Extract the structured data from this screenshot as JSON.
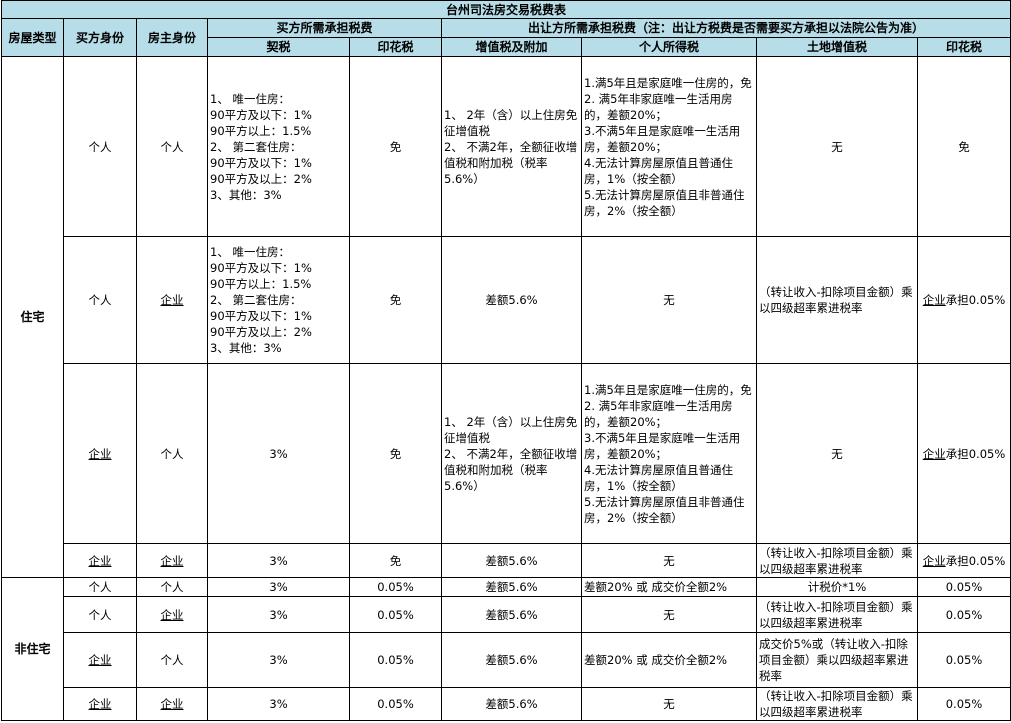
{
  "title": "台州司法房交易税费表",
  "headers": {
    "house_type": "房屋类型",
    "buyer": "买方身份",
    "owner": "房主身份",
    "buyer_taxes": "买方所需承担税费",
    "seller_taxes": "出让方所需承担税费（注：出让方税费是否需要买方承担以法院公告为准）",
    "deed_tax": "契税",
    "stamp_tax_buyer": "印花税",
    "vat": "增值税及附加",
    "income_tax": "个人所得税",
    "land_vat": "土地增值税",
    "stamp_tax_seller": "印花税"
  },
  "groups": [
    {
      "type": "住宅",
      "rows": [
        {
          "buyer": "个人",
          "owner": "个人",
          "deed": "1、 唯一住房：\n90平方及以下：1%\n90平方以上：1.5%\n2、 第二套住房：\n90平方及以下：1%\n90平方及以上：2%\n3、其他：3%",
          "stamp_b": "免",
          "vat": "1、 2年（含）以上住房免征增值税\n2、 不满2年，全额征收增值税和附加税（税率5.6%）",
          "income": "1.满5年且是家庭唯一住房的，免\n2. 满5年非家庭唯一生活用房的，差额20%；\n3.不满5年且是家庭唯一生活用房，差额20%；\n4.无法计算房屋原值且普通住房，1%（按全额）\n5.无法计算房屋原值且非普通住房，2%（按全额）",
          "land": "无",
          "stamp_s": "免"
        },
        {
          "buyer": "个人",
          "owner": "企业",
          "deed": "1、 唯一住房：\n90平方及以下：1%\n90平方以上：1.5%\n2、 第二套住房：\n90平方及以下：1%\n90平方及以上：2%\n3、其他：3%",
          "stamp_b": "免",
          "vat": "差额5.6%",
          "income": "无",
          "land": "（转让收入-扣除项目金额）乘以四级超率累进税率",
          "stamp_s": "企业承担0.05%"
        },
        {
          "buyer": "企业",
          "owner": "个人",
          "deed": "3%",
          "stamp_b": "免",
          "vat": "1、 2年（含）以上住房免征增值税\n2、 不满2年，全额征收增值税和附加税（税率5.6%）",
          "income": "1.满5年且是家庭唯一住房的，免\n2. 满5年非家庭唯一生活用房的，差额20%；\n3.不满5年且是家庭唯一生活用房，差额20%；\n4.无法计算房屋原值且普通住房，1%（按全额）\n5.无法计算房屋原值且非普通住房，2%（按全额）",
          "land": "无",
          "stamp_s": "企业承担0.05%"
        },
        {
          "buyer": "企业",
          "owner": "企业",
          "deed": "3%",
          "stamp_b": "免",
          "vat": "差额5.6%",
          "income": "无",
          "land": "（转让收入-扣除项目金额）乘以四级超率累进税率",
          "stamp_s": "企业承担0.05%"
        }
      ]
    },
    {
      "type": "非住宅",
      "rows": [
        {
          "buyer": "个人",
          "owner": "个人",
          "deed": "3%",
          "stamp_b": "0.05%",
          "vat": "差额5.6%",
          "income": "差额20% 或 成交价全额2%",
          "land": "计税价*1%",
          "stamp_s": "0.05%"
        },
        {
          "buyer": "个人",
          "owner": "企业",
          "deed": "3%",
          "stamp_b": "0.05%",
          "vat": "差额5.6%",
          "income": "无",
          "land": "（转让收入-扣除项目金额）乘以四级超率累进税率",
          "stamp_s": "0.05%"
        },
        {
          "buyer": "企业",
          "owner": "个人",
          "deed": "3%",
          "stamp_b": "0.05%",
          "vat": "差额5.6%",
          "income": "差额20% 或 成交价全额2%",
          "land": "成交价5%或（转让收入-扣除项目金额）乘以四级超率累进税率",
          "stamp_s": "0.05%"
        },
        {
          "buyer": "企业",
          "owner": "企业",
          "deed": "3%",
          "stamp_b": "0.05%",
          "vat": "差额5.6%",
          "income": "无",
          "land": "（转让收入-扣除项目金额）乘以四级超率累进税率",
          "stamp_s": "0.05%"
        }
      ]
    }
  ],
  "colors": {
    "header_bg": "#b7dde8",
    "border": "#000000"
  }
}
